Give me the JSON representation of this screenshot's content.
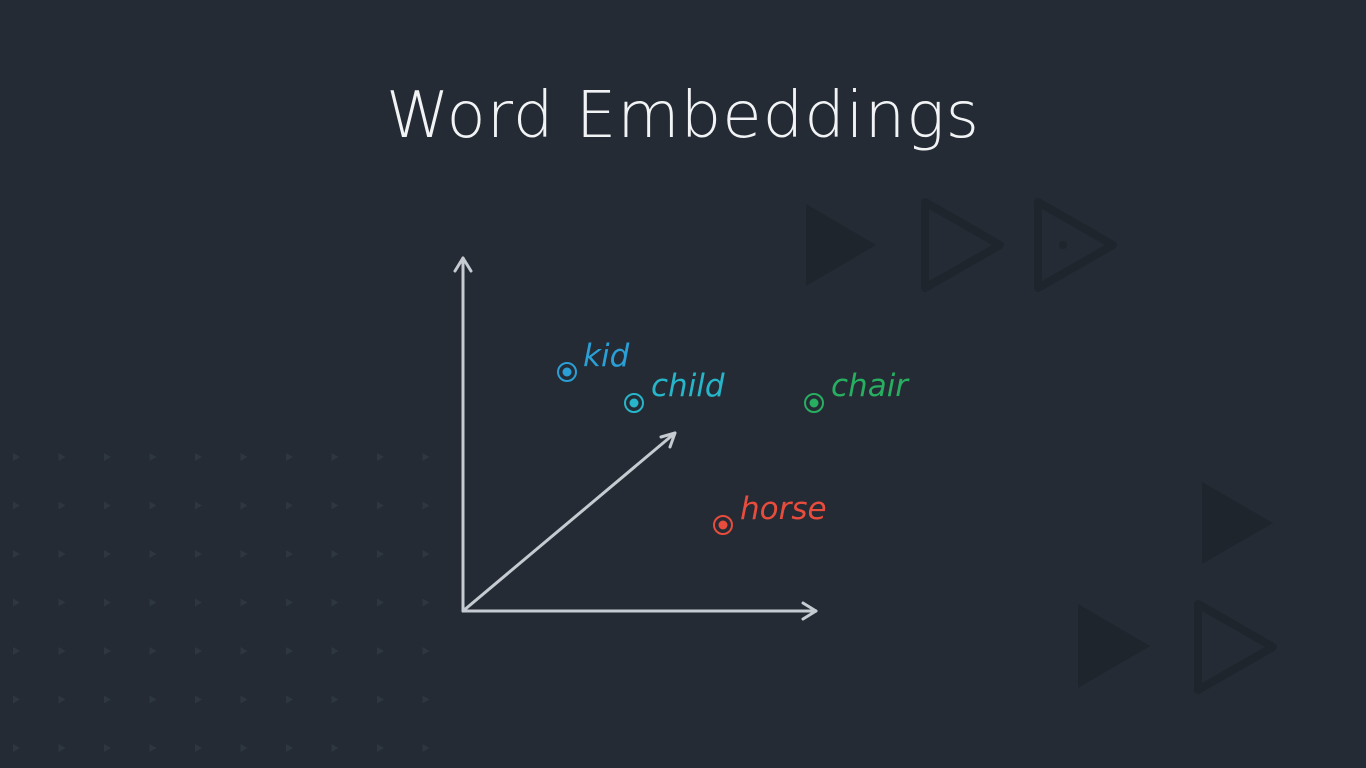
{
  "slide": {
    "title": "Word Embeddings"
  },
  "words": [
    {
      "label": "kid",
      "color": "#2a9fd6"
    },
    {
      "label": "child",
      "color": "#27b5c9"
    },
    {
      "label": "chair",
      "color": "#27ae60"
    },
    {
      "label": "horse",
      "color": "#e74c3c"
    }
  ],
  "colors": {
    "background": "#242b34",
    "axis": "#c5cbd1",
    "title": "#f1f3f5",
    "decoration": "#1e242b"
  }
}
